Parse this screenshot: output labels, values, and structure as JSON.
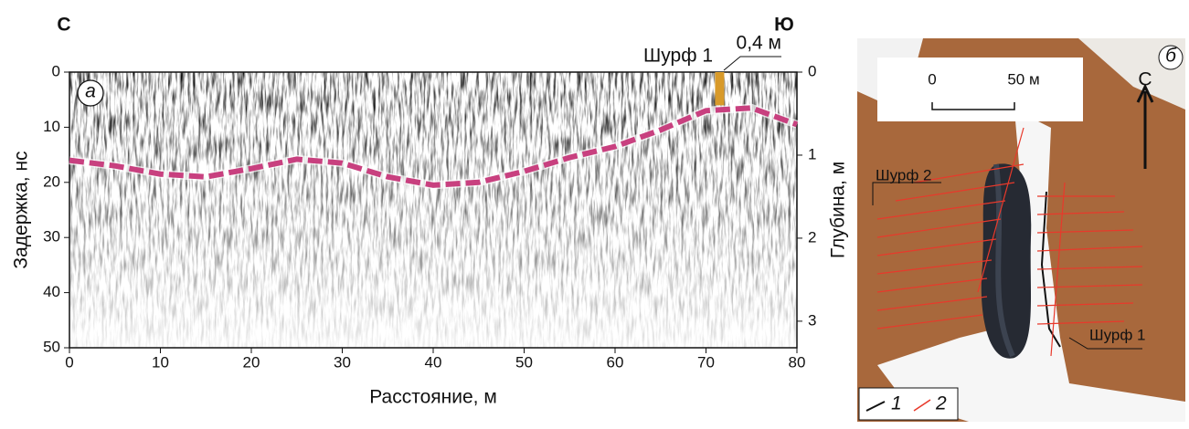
{
  "chart_data": {
    "type": "line",
    "corner_left": "С",
    "corner_right": "Ю",
    "panel_label": "а",
    "xlabel": "Расстояние, м",
    "ylabel": "Задержка, нс",
    "y2label": "Глубина, м",
    "x": [
      0,
      5,
      10,
      15,
      20,
      25,
      30,
      35,
      40,
      45,
      50,
      55,
      60,
      65,
      70,
      75,
      80
    ],
    "series": [
      {
        "color": "#c8407f",
        "values": [
          16,
          17,
          18.5,
          19,
          17.5,
          15.8,
          16.5,
          19,
          20.5,
          20,
          18,
          15.5,
          13.5,
          10.5,
          7,
          6.5,
          9.5
        ]
      }
    ],
    "xlim": [
      0,
      80
    ],
    "xticks": [
      0,
      10,
      20,
      30,
      40,
      50,
      60,
      70,
      80
    ],
    "ylim": [
      50,
      0
    ],
    "yticks": [
      0,
      10,
      20,
      30,
      40,
      50
    ],
    "y2lim": [
      3.32,
      0
    ],
    "y2ticks": [
      0,
      1,
      2,
      3
    ],
    "pit": {
      "x": 71.5,
      "depth": 0.4,
      "label": "Шурф 1",
      "depth_label": "0,4 м",
      "color": "#d89a2a"
    }
  },
  "map": {
    "panel_label": "б",
    "scale_labels": [
      "0",
      "50 м"
    ],
    "north": "С",
    "pit_labels": [
      "Шурф 2",
      "Шурф 1"
    ],
    "legend": [
      "1",
      "2"
    ]
  }
}
